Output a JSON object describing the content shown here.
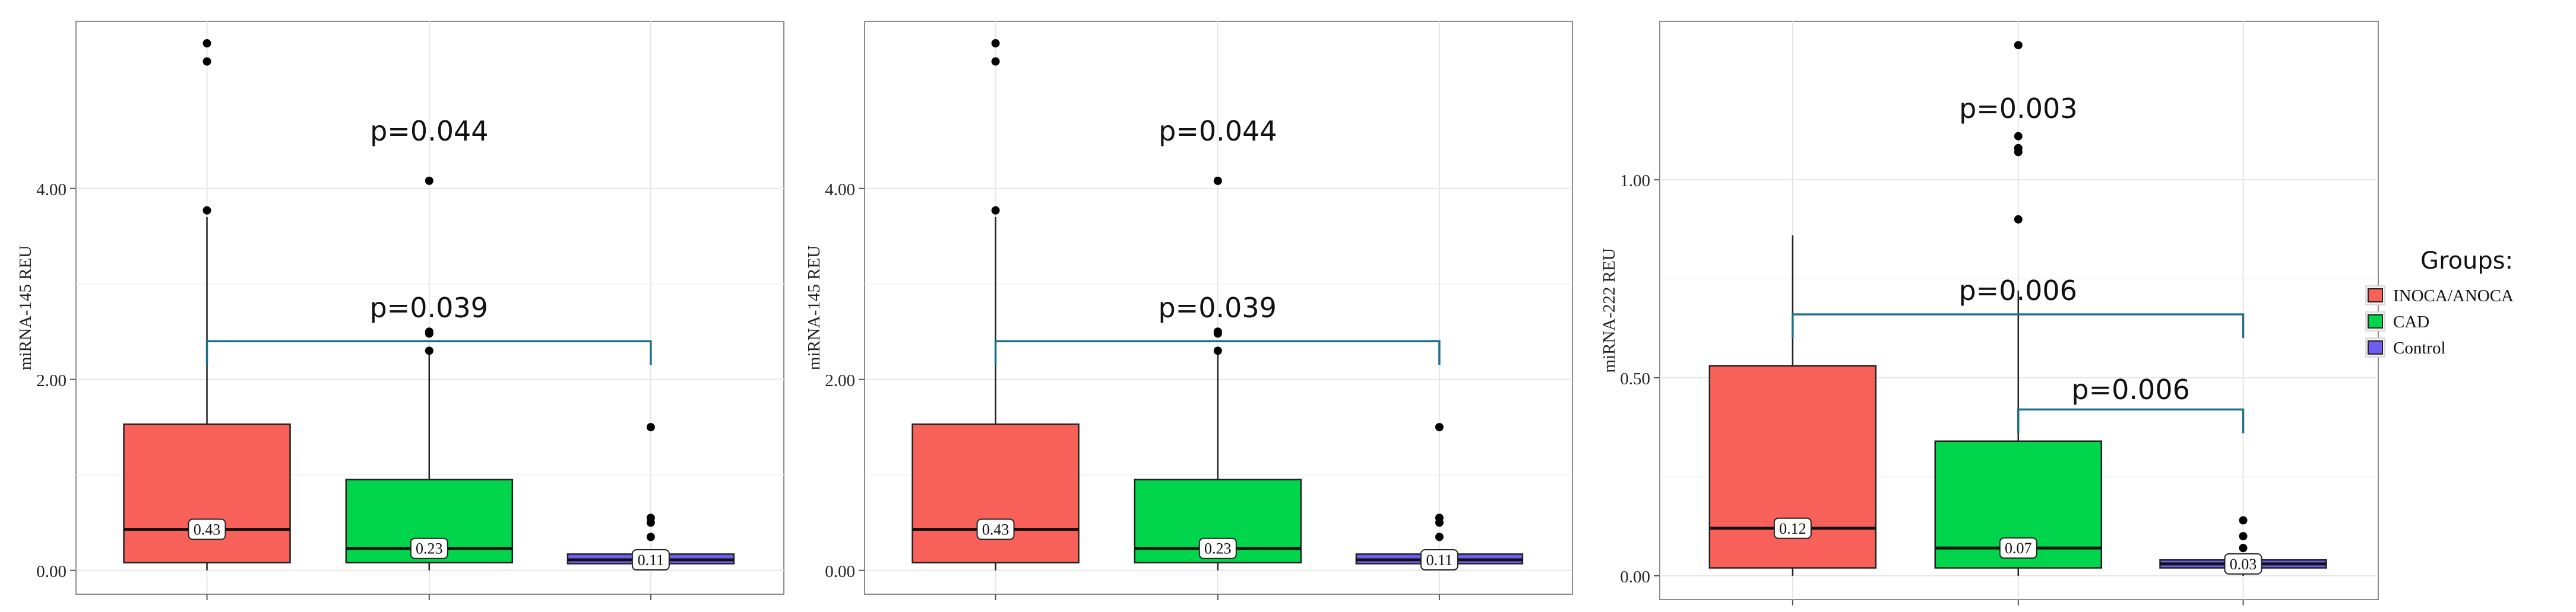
{
  "legend": {
    "title": "Groups:",
    "entries": [
      {
        "label": "INOCA/ANOCA",
        "color": "#f8615a"
      },
      {
        "label": "CAD",
        "color": "#00d54b"
      },
      {
        "label": "Control",
        "color": "#6e5ff0"
      }
    ]
  },
  "chart_data": [
    {
      "type": "box",
      "ylabel": "miRNA-145 REU",
      "ylim": [
        -0.25,
        5.75
      ],
      "yticks": [
        0,
        2,
        4
      ],
      "ytick_labels": [
        "0.00",
        "2.00",
        "4.00"
      ],
      "grid": true,
      "categories": [
        "INOCA/ANOCA",
        "CAD",
        "Control"
      ],
      "boxes": [
        {
          "group": "INOCA/ANOCA",
          "q1": 0.08,
          "median": 0.43,
          "q3": 1.53,
          "whisker_low": 0.0,
          "whisker_high": 3.7,
          "median_label": "0.43",
          "outliers": [
            3.77,
            5.33,
            5.52
          ]
        },
        {
          "group": "CAD",
          "q1": 0.08,
          "median": 0.23,
          "q3": 0.95,
          "whisker_low": 0.0,
          "whisker_high": 2.28,
          "median_label": "0.23",
          "outliers": [
            2.3,
            2.48,
            2.5,
            4.08
          ]
        },
        {
          "group": "Control",
          "q1": 0.07,
          "median": 0.11,
          "q3": 0.17,
          "whisker_low": 0.0,
          "whisker_high": 0.2,
          "median_label": "0.11",
          "outliers": [
            0.35,
            0.5,
            0.55,
            1.5
          ]
        }
      ],
      "annotations": [
        {
          "text": "p=0.044",
          "y": 4.6
        },
        {
          "text": "p=0.039",
          "y": 2.75,
          "bracket": {
            "from": 0,
            "to": 2,
            "y": 2.4
          }
        }
      ]
    },
    {
      "type": "box",
      "ylabel": "miRNA-145 REU",
      "ylim": [
        -0.25,
        5.75
      ],
      "yticks": [
        0,
        2,
        4
      ],
      "ytick_labels": [
        "0.00",
        "2.00",
        "4.00"
      ],
      "grid": true,
      "categories": [
        "INOCA/ANOCA",
        "CAD",
        "Control"
      ],
      "boxes": [
        {
          "group": "INOCA/ANOCA",
          "q1": 0.08,
          "median": 0.43,
          "q3": 1.53,
          "whisker_low": 0.0,
          "whisker_high": 3.7,
          "median_label": "0.43",
          "outliers": [
            3.77,
            5.33,
            5.52
          ]
        },
        {
          "group": "CAD",
          "q1": 0.08,
          "median": 0.23,
          "q3": 0.95,
          "whisker_low": 0.0,
          "whisker_high": 2.28,
          "median_label": "0.23",
          "outliers": [
            2.3,
            2.48,
            2.5,
            4.08
          ]
        },
        {
          "group": "Control",
          "q1": 0.07,
          "median": 0.11,
          "q3": 0.17,
          "whisker_low": 0.0,
          "whisker_high": 0.2,
          "median_label": "0.11",
          "outliers": [
            0.35,
            0.5,
            0.55,
            1.5
          ]
        }
      ],
      "annotations": [
        {
          "text": "p=0.044",
          "y": 4.6
        },
        {
          "text": "p=0.039",
          "y": 2.75,
          "bracket": {
            "from": 0,
            "to": 2,
            "y": 2.4
          }
        }
      ]
    },
    {
      "type": "box",
      "ylabel": "miRNA-222 REU",
      "ylim": [
        -0.06,
        1.4
      ],
      "yticks": [
        0,
        0.5,
        1.0
      ],
      "ytick_labels": [
        "0.00",
        "0.50",
        "1.00"
      ],
      "grid": true,
      "categories": [
        "INOCA/ANOCA",
        "CAD",
        "Control"
      ],
      "boxes": [
        {
          "group": "INOCA/ANOCA",
          "q1": 0.02,
          "median": 0.12,
          "q3": 0.53,
          "whisker_low": 0.0,
          "whisker_high": 0.86,
          "median_label": "0.12",
          "outliers": []
        },
        {
          "group": "CAD",
          "q1": 0.02,
          "median": 0.07,
          "q3": 0.34,
          "whisker_low": 0.0,
          "whisker_high": 0.72,
          "median_label": "0.07",
          "outliers": [
            0.9,
            1.07,
            1.08,
            1.11,
            1.34
          ]
        },
        {
          "group": "Control",
          "q1": 0.02,
          "median": 0.03,
          "q3": 0.04,
          "whisker_low": 0.0,
          "whisker_high": 0.05,
          "median_label": "0.03",
          "outliers": [
            0.07,
            0.1,
            0.14
          ]
        }
      ],
      "annotations": [
        {
          "text": "p=0.003",
          "y": 1.18
        },
        {
          "text": "p=0.006",
          "y": 0.72,
          "bracket": {
            "from": 0,
            "to": 2,
            "y": 0.66
          }
        },
        {
          "text": "p=0.006",
          "y": 0.47,
          "bracket": {
            "from": 1,
            "to": 2,
            "y": 0.42
          }
        }
      ]
    }
  ]
}
